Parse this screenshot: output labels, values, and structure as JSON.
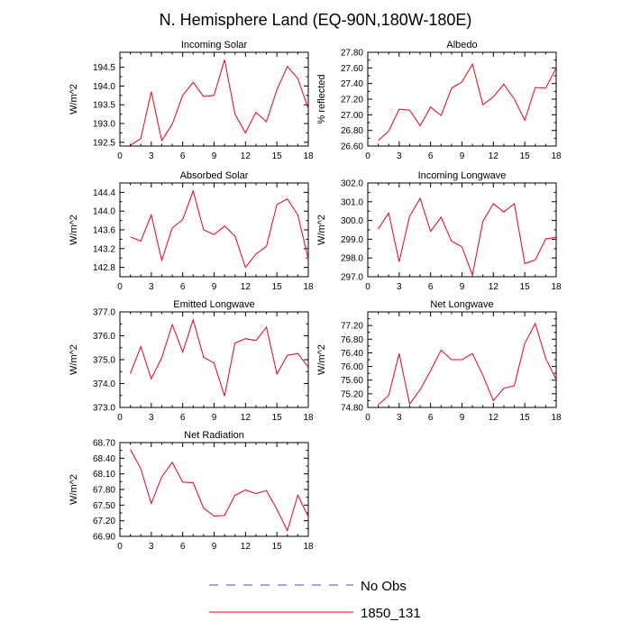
{
  "figure_title": "N. Hemisphere Land (EQ-90N,180W-180E)",
  "legend": [
    {
      "label": "No Obs",
      "color": "#4b4bb4",
      "style": "dashed"
    },
    {
      "label": "1850_131",
      "color": "#e8001c",
      "style": "solid"
    }
  ],
  "chart_data": [
    {
      "type": "line",
      "title": "Incoming Solar",
      "ylabel": "W/m^2",
      "xlim": [
        0,
        18
      ],
      "xticks": [
        0,
        3,
        6,
        9,
        12,
        15,
        18
      ],
      "ylim": [
        192.4,
        194.9
      ],
      "yticks": [
        192.5,
        193.0,
        193.5,
        194.0,
        194.5
      ],
      "yticklabels": [
        "192.5",
        "193.0",
        "193.5",
        "194.0",
        "194.5"
      ],
      "series": [
        {
          "name": "1850_131",
          "color": "#e8001c",
          "x": [
            1,
            2,
            3,
            4,
            5,
            6,
            7,
            8,
            9,
            10,
            11,
            12,
            13,
            14,
            15,
            16,
            17,
            18
          ],
          "values": [
            192.42,
            192.6,
            193.85,
            192.55,
            192.98,
            193.75,
            194.1,
            193.72,
            193.75,
            194.7,
            193.25,
            192.75,
            193.3,
            193.05,
            193.9,
            194.52,
            194.2,
            193.4
          ]
        }
      ]
    },
    {
      "type": "line",
      "title": "Albedo",
      "ylabel": "% reflected",
      "xlim": [
        0,
        18
      ],
      "xticks": [
        0,
        3,
        6,
        9,
        12,
        15,
        18
      ],
      "ylim": [
        26.6,
        27.8
      ],
      "yticks": [
        26.6,
        26.8,
        27.0,
        27.2,
        27.4,
        27.6,
        27.8
      ],
      "yticklabels": [
        "26.60",
        "26.80",
        "27.00",
        "27.20",
        "27.40",
        "27.60",
        "27.80"
      ],
      "series": [
        {
          "name": "1850_131",
          "color": "#e8001c",
          "x": [
            1,
            2,
            3,
            4,
            5,
            6,
            7,
            8,
            9,
            10,
            11,
            12,
            13,
            14,
            15,
            16,
            17,
            18
          ],
          "values": [
            26.67,
            26.79,
            27.07,
            27.06,
            26.86,
            27.1,
            26.99,
            27.34,
            27.42,
            27.65,
            27.13,
            27.23,
            27.39,
            27.2,
            26.93,
            27.35,
            27.34,
            27.6
          ]
        }
      ]
    },
    {
      "type": "line",
      "title": "Absorbed Solar",
      "ylabel": "W/m^2",
      "xlim": [
        0,
        18
      ],
      "xticks": [
        0,
        3,
        6,
        9,
        12,
        15,
        18
      ],
      "ylim": [
        142.6,
        144.6
      ],
      "yticks": [
        142.8,
        143.2,
        143.6,
        144.0,
        144.4
      ],
      "yticklabels": [
        "142.8",
        "143.2",
        "143.6",
        "144.0",
        "144.4"
      ],
      "series": [
        {
          "name": "1850_131",
          "color": "#e8001c",
          "x": [
            1,
            2,
            3,
            4,
            5,
            6,
            7,
            8,
            9,
            10,
            11,
            12,
            13,
            14,
            15,
            16,
            17,
            18
          ],
          "values": [
            143.45,
            143.36,
            143.92,
            142.95,
            143.64,
            143.82,
            144.43,
            143.6,
            143.5,
            143.68,
            143.47,
            142.8,
            143.08,
            143.25,
            144.14,
            144.26,
            143.92,
            142.98
          ]
        }
      ]
    },
    {
      "type": "line",
      "title": "Incoming Longwave",
      "ylabel": "W/m^2",
      "xlim": [
        0,
        18
      ],
      "xticks": [
        0,
        3,
        6,
        9,
        12,
        15,
        18
      ],
      "ylim": [
        297.0,
        302.0
      ],
      "yticks": [
        297.0,
        298.0,
        299.0,
        300.0,
        301.0,
        302.0
      ],
      "yticklabels": [
        "297.0",
        "298.0",
        "299.0",
        "300.0",
        "301.0",
        "302.0"
      ],
      "series": [
        {
          "name": "1850_131",
          "color": "#e8001c",
          "x": [
            1,
            2,
            3,
            4,
            5,
            6,
            7,
            8,
            9,
            10,
            11,
            12,
            13,
            14,
            15,
            16,
            17,
            18
          ],
          "values": [
            299.55,
            300.4,
            297.8,
            300.22,
            301.18,
            299.42,
            300.18,
            298.9,
            298.6,
            297.08,
            299.95,
            300.9,
            300.45,
            300.9,
            297.7,
            297.9,
            299.02,
            299.1
          ]
        }
      ]
    },
    {
      "type": "line",
      "title": "Emitted Longwave",
      "ylabel": "W/m^2",
      "xlim": [
        0,
        18
      ],
      "xticks": [
        0,
        3,
        6,
        9,
        12,
        15,
        18
      ],
      "ylim": [
        373.0,
        377.0
      ],
      "yticks": [
        373.0,
        374.0,
        375.0,
        376.0,
        377.0
      ],
      "yticklabels": [
        "373.0",
        "374.0",
        "375.0",
        "376.0",
        "377.0"
      ],
      "series": [
        {
          "name": "1850_131",
          "color": "#e8001c",
          "x": [
            1,
            2,
            3,
            4,
            5,
            6,
            7,
            8,
            9,
            10,
            11,
            12,
            13,
            14,
            15,
            16,
            17,
            18
          ],
          "values": [
            374.42,
            375.55,
            374.2,
            375.08,
            376.47,
            375.32,
            376.67,
            375.1,
            374.86,
            373.48,
            375.7,
            375.88,
            375.8,
            376.36,
            374.4,
            375.18,
            375.26,
            374.68
          ]
        }
      ]
    },
    {
      "type": "line",
      "title": "Net Longwave",
      "ylabel": "W/m^2",
      "xlim": [
        0,
        18
      ],
      "xticks": [
        0,
        3,
        6,
        9,
        12,
        15,
        18
      ],
      "ylim": [
        74.8,
        77.6
      ],
      "yticks": [
        74.8,
        75.2,
        75.6,
        76.0,
        76.4,
        76.8,
        77.2
      ],
      "yticklabels": [
        "74.80",
        "75.20",
        "75.60",
        "76.00",
        "76.40",
        "76.80",
        "77.20"
      ],
      "series": [
        {
          "name": "1850_131",
          "color": "#e8001c",
          "x": [
            1,
            2,
            3,
            4,
            5,
            6,
            7,
            8,
            9,
            10,
            11,
            12,
            13,
            14,
            15,
            16,
            17,
            18
          ],
          "values": [
            74.88,
            75.15,
            76.38,
            74.9,
            75.32,
            75.88,
            76.48,
            76.2,
            76.2,
            76.38,
            75.74,
            75.0,
            75.36,
            75.44,
            76.68,
            77.26,
            76.24,
            75.62
          ]
        }
      ]
    },
    {
      "type": "line",
      "title": "Net Radiation",
      "ylabel": "W/m^2",
      "xlim": [
        0,
        18
      ],
      "xticks": [
        0,
        3,
        6,
        9,
        12,
        15,
        18
      ],
      "ylim": [
        66.9,
        68.7
      ],
      "yticks": [
        66.9,
        67.2,
        67.5,
        67.8,
        68.1,
        68.4,
        68.7
      ],
      "yticklabels": [
        "66.90",
        "67.20",
        "67.50",
        "67.80",
        "68.10",
        "68.40",
        "68.70"
      ],
      "series": [
        {
          "name": "1850_131",
          "color": "#e8001c",
          "x": [
            1,
            2,
            3,
            4,
            5,
            6,
            7,
            8,
            9,
            10,
            11,
            12,
            13,
            14,
            15,
            16,
            17,
            18
          ],
          "values": [
            68.57,
            68.2,
            67.53,
            68.04,
            68.32,
            67.94,
            67.93,
            67.44,
            67.29,
            67.3,
            67.69,
            67.79,
            67.72,
            67.78,
            67.42,
            67.01,
            67.69,
            67.28
          ]
        }
      ]
    }
  ]
}
